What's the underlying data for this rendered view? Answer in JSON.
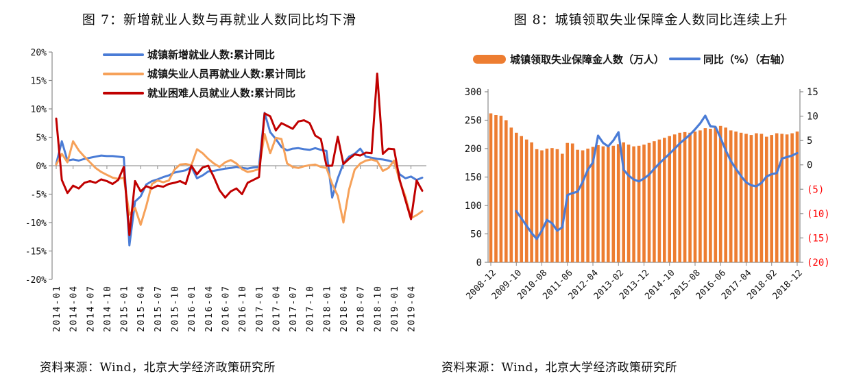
{
  "page": {
    "background": "#ffffff"
  },
  "figure7": {
    "title": "图 7：新增就业人数与再就业人数同比均下滑",
    "source": "资料来源：Wind，北京大学经济政策研究所"
  },
  "figure8": {
    "title": "图 8：城镇领取失业保障金人数同比连续上升",
    "source": "资料来源：Wind，北京大学经济政策研究所"
  },
  "colors": {
    "blue": "#4A7CD6",
    "orange_line": "#F6A159",
    "red": "#C00000",
    "bar_orange": "#ED7D31",
    "axis": "#8a8a8a",
    "tick_text": "#111111",
    "negative_axis_text": "#FF0000"
  },
  "chart_data": [
    {
      "type": "line",
      "title": "图 7：新增就业人数与再就业人数同比均下滑",
      "grid": false,
      "legend_position": "top-inside",
      "ylim": [
        -20,
        20
      ],
      "yticks": [
        20,
        15,
        10,
        5,
        0,
        -5,
        -10,
        -15,
        -20
      ],
      "ytick_labels": [
        "20%",
        "15%",
        "10%",
        "5%",
        "0%",
        "-5%",
        "-10%",
        "-15%",
        "-20%"
      ],
      "x_tick_every": 3,
      "x": [
        "2014-01",
        "2014-02",
        "2014-03",
        "2014-04",
        "2014-05",
        "2014-06",
        "2014-07",
        "2014-08",
        "2014-09",
        "2014-10",
        "2014-11",
        "2014-12",
        "2015-01",
        "2015-02",
        "2015-03",
        "2015-04",
        "2015-05",
        "2015-06",
        "2015-07",
        "2015-08",
        "2015-09",
        "2015-10",
        "2015-11",
        "2015-12",
        "2016-01",
        "2016-02",
        "2016-03",
        "2016-04",
        "2016-05",
        "2016-06",
        "2016-07",
        "2016-08",
        "2016-09",
        "2016-10",
        "2016-11",
        "2016-12",
        "2017-01",
        "2017-02",
        "2017-03",
        "2017-04",
        "2017-05",
        "2017-06",
        "2017-07",
        "2017-08",
        "2017-09",
        "2017-10",
        "2017-11",
        "2017-12",
        "2018-01",
        "2018-02",
        "2018-03",
        "2018-04",
        "2018-05",
        "2018-06",
        "2018-07",
        "2018-08",
        "2018-09",
        "2018-10",
        "2018-11",
        "2018-12",
        "2019-01",
        "2019-02",
        "2019-03",
        "2019-04",
        "2019-05",
        "2019-06"
      ],
      "series": [
        {
          "name": "城镇新增就业人数:累计同比",
          "color": "#4A7CD6",
          "values": [
            0.3,
            4.3,
            0.9,
            1.1,
            0.9,
            1.2,
            1.4,
            1.6,
            1.8,
            1.7,
            1.7,
            1.6,
            1.5,
            -14,
            -6.3,
            -5.4,
            -3.3,
            -2.7,
            -2.4,
            -2,
            -1.7,
            -1.2,
            -1,
            -0.8,
            -0.2,
            -2.2,
            -1.7,
            -1,
            -0.9,
            -0.7,
            -0.5,
            -0.4,
            -0.2,
            -0.4,
            -0.5,
            -0.3,
            -0.2,
            9.3,
            5.9,
            4.7,
            3.3,
            2.7,
            3,
            3.1,
            2.9,
            2.8,
            3.1,
            2.8,
            2.6,
            -5.6,
            -2.2,
            0.4,
            1.6,
            2.1,
            3,
            1.6,
            1.4,
            1.2,
            1.1,
            0.9,
            0.6,
            -1.5,
            -2.2,
            -1.9,
            -2.5,
            -2.1
          ]
        },
        {
          "name": "城镇失业人员再就业人数:累计同比",
          "color": "#F6A159",
          "values": [
            0.2,
            2.1,
            0.6,
            4.3,
            2.7,
            1.6,
            0.6,
            -0.4,
            -1.1,
            -1.6,
            -2.1,
            -2.3,
            -2.1,
            -8.6,
            -7.4,
            -10.4,
            -7.1,
            -3.2,
            -2.6,
            -2.9,
            -2.6,
            -0.7,
            0.2,
            0.3,
            0.1,
            2.9,
            2.2,
            1.2,
            0.4,
            -0.2,
            0.6,
            1,
            0.4,
            -0.6,
            -1.1,
            -0.9,
            -0.6,
            5.6,
            2.2,
            4.9,
            4.7,
            0.4,
            -0.2,
            -0.4,
            -0.1,
            0.1,
            0.2,
            -0.2,
            -0.4,
            -3.2,
            -5.3,
            -10,
            -4.2,
            -0.7,
            0.4,
            0.9,
            1.1,
            0.8,
            -0.9,
            -0.4,
            0.9,
            -2.7,
            -5.4,
            -9.2,
            -8.7,
            -8
          ]
        },
        {
          "name": "就业困难人员就业人数:累计同比",
          "color": "#C00000",
          "values": [
            8.3,
            -2.5,
            -4.8,
            -3.5,
            -4,
            -3,
            -2.7,
            -3,
            -2.4,
            -2.7,
            -3.2,
            -2.5,
            -0.2,
            -12.2,
            -2.7,
            -4.5,
            -3.6,
            -4,
            -3.5,
            -3.7,
            -3.2,
            -3,
            -2.7,
            -3.2,
            0,
            -1.5,
            -0.3,
            0,
            -2,
            -4.3,
            -5.6,
            -4.5,
            -4,
            -5,
            -3,
            -2.5,
            -2,
            9.2,
            8.7,
            6.2,
            7.5,
            7,
            6.5,
            7.8,
            8,
            7.5,
            5.3,
            4.7,
            0,
            0,
            5.1,
            0.3,
            1.2,
            2,
            1.8,
            2.3,
            2.2,
            16.2,
            2.1,
            3,
            2.9,
            -2.5,
            -6,
            -9.4,
            -2.6,
            -4.4
          ]
        }
      ]
    },
    {
      "type": "bar+line",
      "title": "图 8：城镇领取失业保障金人数同比连续上升",
      "grid": false,
      "legend_position": "top",
      "left_axis": {
        "min": 0,
        "max": 300,
        "ticks": [
          0,
          50,
          100,
          150,
          200,
          250,
          300
        ]
      },
      "right_axis": {
        "min": -20,
        "max": 15,
        "ticks": [
          15,
          10,
          5,
          0,
          -5,
          -10,
          -15,
          -20
        ],
        "tick_labels": [
          "15",
          "10",
          "5",
          "0",
          "(5)",
          "(10)",
          "(15)",
          "(20)"
        ],
        "negative_color": "#FF0000"
      },
      "x_tick_every": 5,
      "x": [
        "2008-12",
        "2009-02",
        "2009-04",
        "2009-06",
        "2009-08",
        "2009-10",
        "2009-12",
        "2010-02",
        "2010-04",
        "2010-06",
        "2010-08",
        "2010-10",
        "2010-12",
        "2011-02",
        "2011-04",
        "2011-06",
        "2011-08",
        "2011-10",
        "2011-12",
        "2012-02",
        "2012-04",
        "2012-06",
        "2012-08",
        "2012-10",
        "2012-12",
        "2013-02",
        "2013-04",
        "2013-06",
        "2013-08",
        "2013-10",
        "2013-12",
        "2014-02",
        "2014-04",
        "2014-06",
        "2014-08",
        "2014-10",
        "2014-12",
        "2015-02",
        "2015-04",
        "2015-06",
        "2015-08",
        "2015-10",
        "2015-12",
        "2016-02",
        "2016-04",
        "2016-06",
        "2016-08",
        "2016-10",
        "2016-12",
        "2017-02",
        "2017-04",
        "2017-06",
        "2017-08",
        "2017-10",
        "2017-12",
        "2018-02",
        "2018-04",
        "2018-06",
        "2018-08",
        "2018-10",
        "2018-12"
      ],
      "bar_series": {
        "name": "城镇领取失业保障金人数（万人）",
        "color": "#ED7D31",
        "axis": "left",
        "values": [
          262,
          259,
          258,
          250,
          237,
          228,
          222,
          216,
          211,
          199,
          197,
          200,
          201,
          199,
          191,
          210,
          209,
          198,
          197,
          200,
          203,
          206,
          204,
          203,
          205,
          208,
          211,
          207,
          204,
          205,
          207,
          210,
          213,
          216,
          219,
          222,
          225,
          228,
          229,
          228,
          230,
          232,
          236,
          235,
          238,
          240,
          237,
          232,
          230,
          228,
          226,
          224,
          227,
          226,
          221,
          224,
          227,
          226,
          225,
          227,
          230
        ]
      },
      "line_series": {
        "name": "同比（%）（右轴）",
        "color": "#4A7CD6",
        "axis": "right",
        "values": [
          null,
          null,
          null,
          null,
          null,
          -9.5,
          -11,
          -12.5,
          -14,
          -15.2,
          -13.5,
          -11.3,
          -12,
          -13.5,
          -12.8,
          -6.2,
          -5.8,
          -5.5,
          -3.5,
          -1,
          0.5,
          6,
          4.5,
          3.8,
          5,
          6.7,
          -1,
          -2.2,
          -3,
          -3.4,
          -2.8,
          -2,
          -0.8,
          0.3,
          1.3,
          2.3,
          3.3,
          4.4,
          5.3,
          6.2,
          7.3,
          8.5,
          10.1,
          7.9,
          7.8,
          5.5,
          3,
          0.8,
          -0.8,
          -2.3,
          -3.6,
          -4.2,
          -4.4,
          -3.7,
          -2.4,
          -1.9,
          -1.7,
          1.3,
          1.6,
          1.9,
          2.4
        ]
      }
    }
  ]
}
